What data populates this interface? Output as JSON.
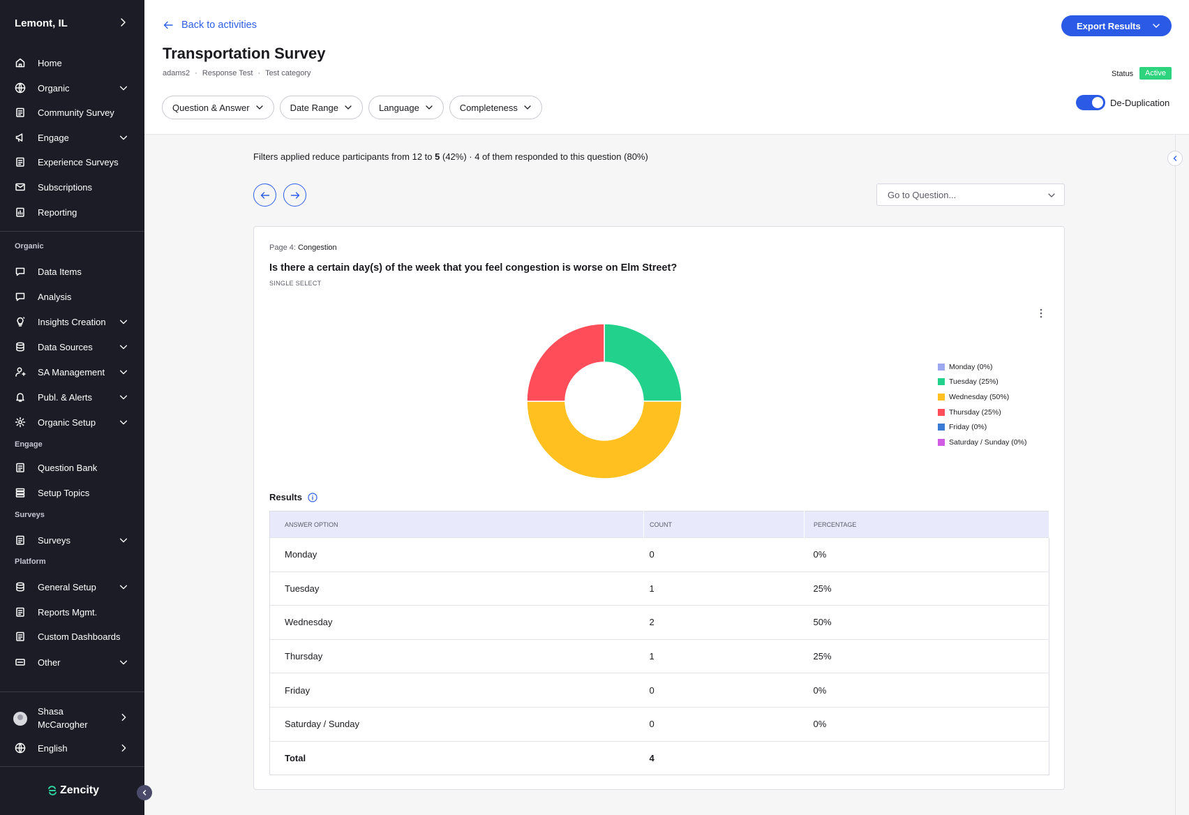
{
  "sidebar": {
    "brand": "Lemont, IL",
    "top_items": [
      {
        "label": "Home",
        "icon": "home-icon"
      },
      {
        "label": "Organic",
        "icon": "globe-icon"
      },
      {
        "label": "Community Survey",
        "icon": "clipboard-icon"
      },
      {
        "label": "Engage",
        "icon": "megaphone-icon"
      },
      {
        "label": "Experience Surveys",
        "icon": "clipboard-icon"
      },
      {
        "label": "Subscriptions",
        "icon": "mail-icon"
      },
      {
        "label": "Reporting",
        "icon": "report-icon"
      }
    ],
    "sections": {
      "organic": "Organic",
      "engage": "Engage",
      "surveys": "Surveys",
      "platform": "Platform"
    },
    "organic_items": [
      {
        "label": "Data Items"
      },
      {
        "label": "Analysis"
      },
      {
        "label": "Insights Creation"
      },
      {
        "label": "Data Sources"
      },
      {
        "label": "SA Management"
      },
      {
        "label": "Publ. & Alerts"
      },
      {
        "label": "Organic Setup"
      }
    ],
    "engage_items": [
      {
        "label": "Question Bank"
      },
      {
        "label": "Setup Topics"
      }
    ],
    "surveys_items": [
      {
        "label": "Surveys"
      }
    ],
    "platform_items": [
      {
        "label": "General Setup"
      },
      {
        "label": "Reports Mgmt."
      },
      {
        "label": "Custom Dashboards"
      },
      {
        "label": "Other"
      }
    ],
    "user_name": "Shasa McCarogher",
    "language": "English",
    "logo_text": "Zencity"
  },
  "header": {
    "back_label": "Back to activities",
    "title": "Transportation Survey",
    "meta": [
      "adams2",
      "·",
      "Response Test",
      "·",
      "Test category"
    ],
    "export_label": "Export Results",
    "status_label": "Status",
    "status_value": "Active",
    "filters": [
      "Question & Answer",
      "Date Range",
      "Language",
      "Completeness"
    ],
    "dedup_label": "De-Duplication"
  },
  "main": {
    "filter_info_prefix": "Filters applied reduce participants from 12 to ",
    "filter_info_bold": "5",
    "filter_info_suffix": " (42%)  ·  4 of them responded to this question (80%)",
    "goto_placeholder": "Go to Question...",
    "page_label": "Page 4:",
    "page_name": "Congestion",
    "question": "Is there a certain day(s) of the week that you feel congestion is worse on Elm Street?",
    "question_type": "SINGLE SELECT",
    "results_label": "Results",
    "table": {
      "headers": [
        "ANSWER OPTION",
        "COUNT",
        "PERCENTAGE"
      ],
      "rows": [
        [
          "Monday",
          "0",
          "0%"
        ],
        [
          "Tuesday",
          "1",
          "25%"
        ],
        [
          "Wednesday",
          "2",
          "50%"
        ],
        [
          "Thursday",
          "1",
          "25%"
        ],
        [
          "Friday",
          "0",
          "0%"
        ],
        [
          "Saturday / Sunday",
          "0",
          "0%"
        ]
      ],
      "total_label": "Total",
      "total_value": "4"
    }
  },
  "chart_data": {
    "type": "pie",
    "categories": [
      "Monday",
      "Tuesday",
      "Wednesday",
      "Thursday",
      "Friday",
      "Saturday / Sunday"
    ],
    "values": [
      0,
      25,
      50,
      25,
      0,
      0
    ],
    "legend": [
      "Monday (0%)",
      "Tuesday (25%)",
      "Wednesday (50%)",
      "Thursday (25%)",
      "Friday (0%)",
      "Saturday / Sunday (0%)"
    ],
    "colors": [
      "#9ea8f0",
      "#22d18b",
      "#ffc020",
      "#ff4d5a",
      "#3a7bd5",
      "#d05ce3"
    ],
    "title": "",
    "legend_position": "right"
  }
}
